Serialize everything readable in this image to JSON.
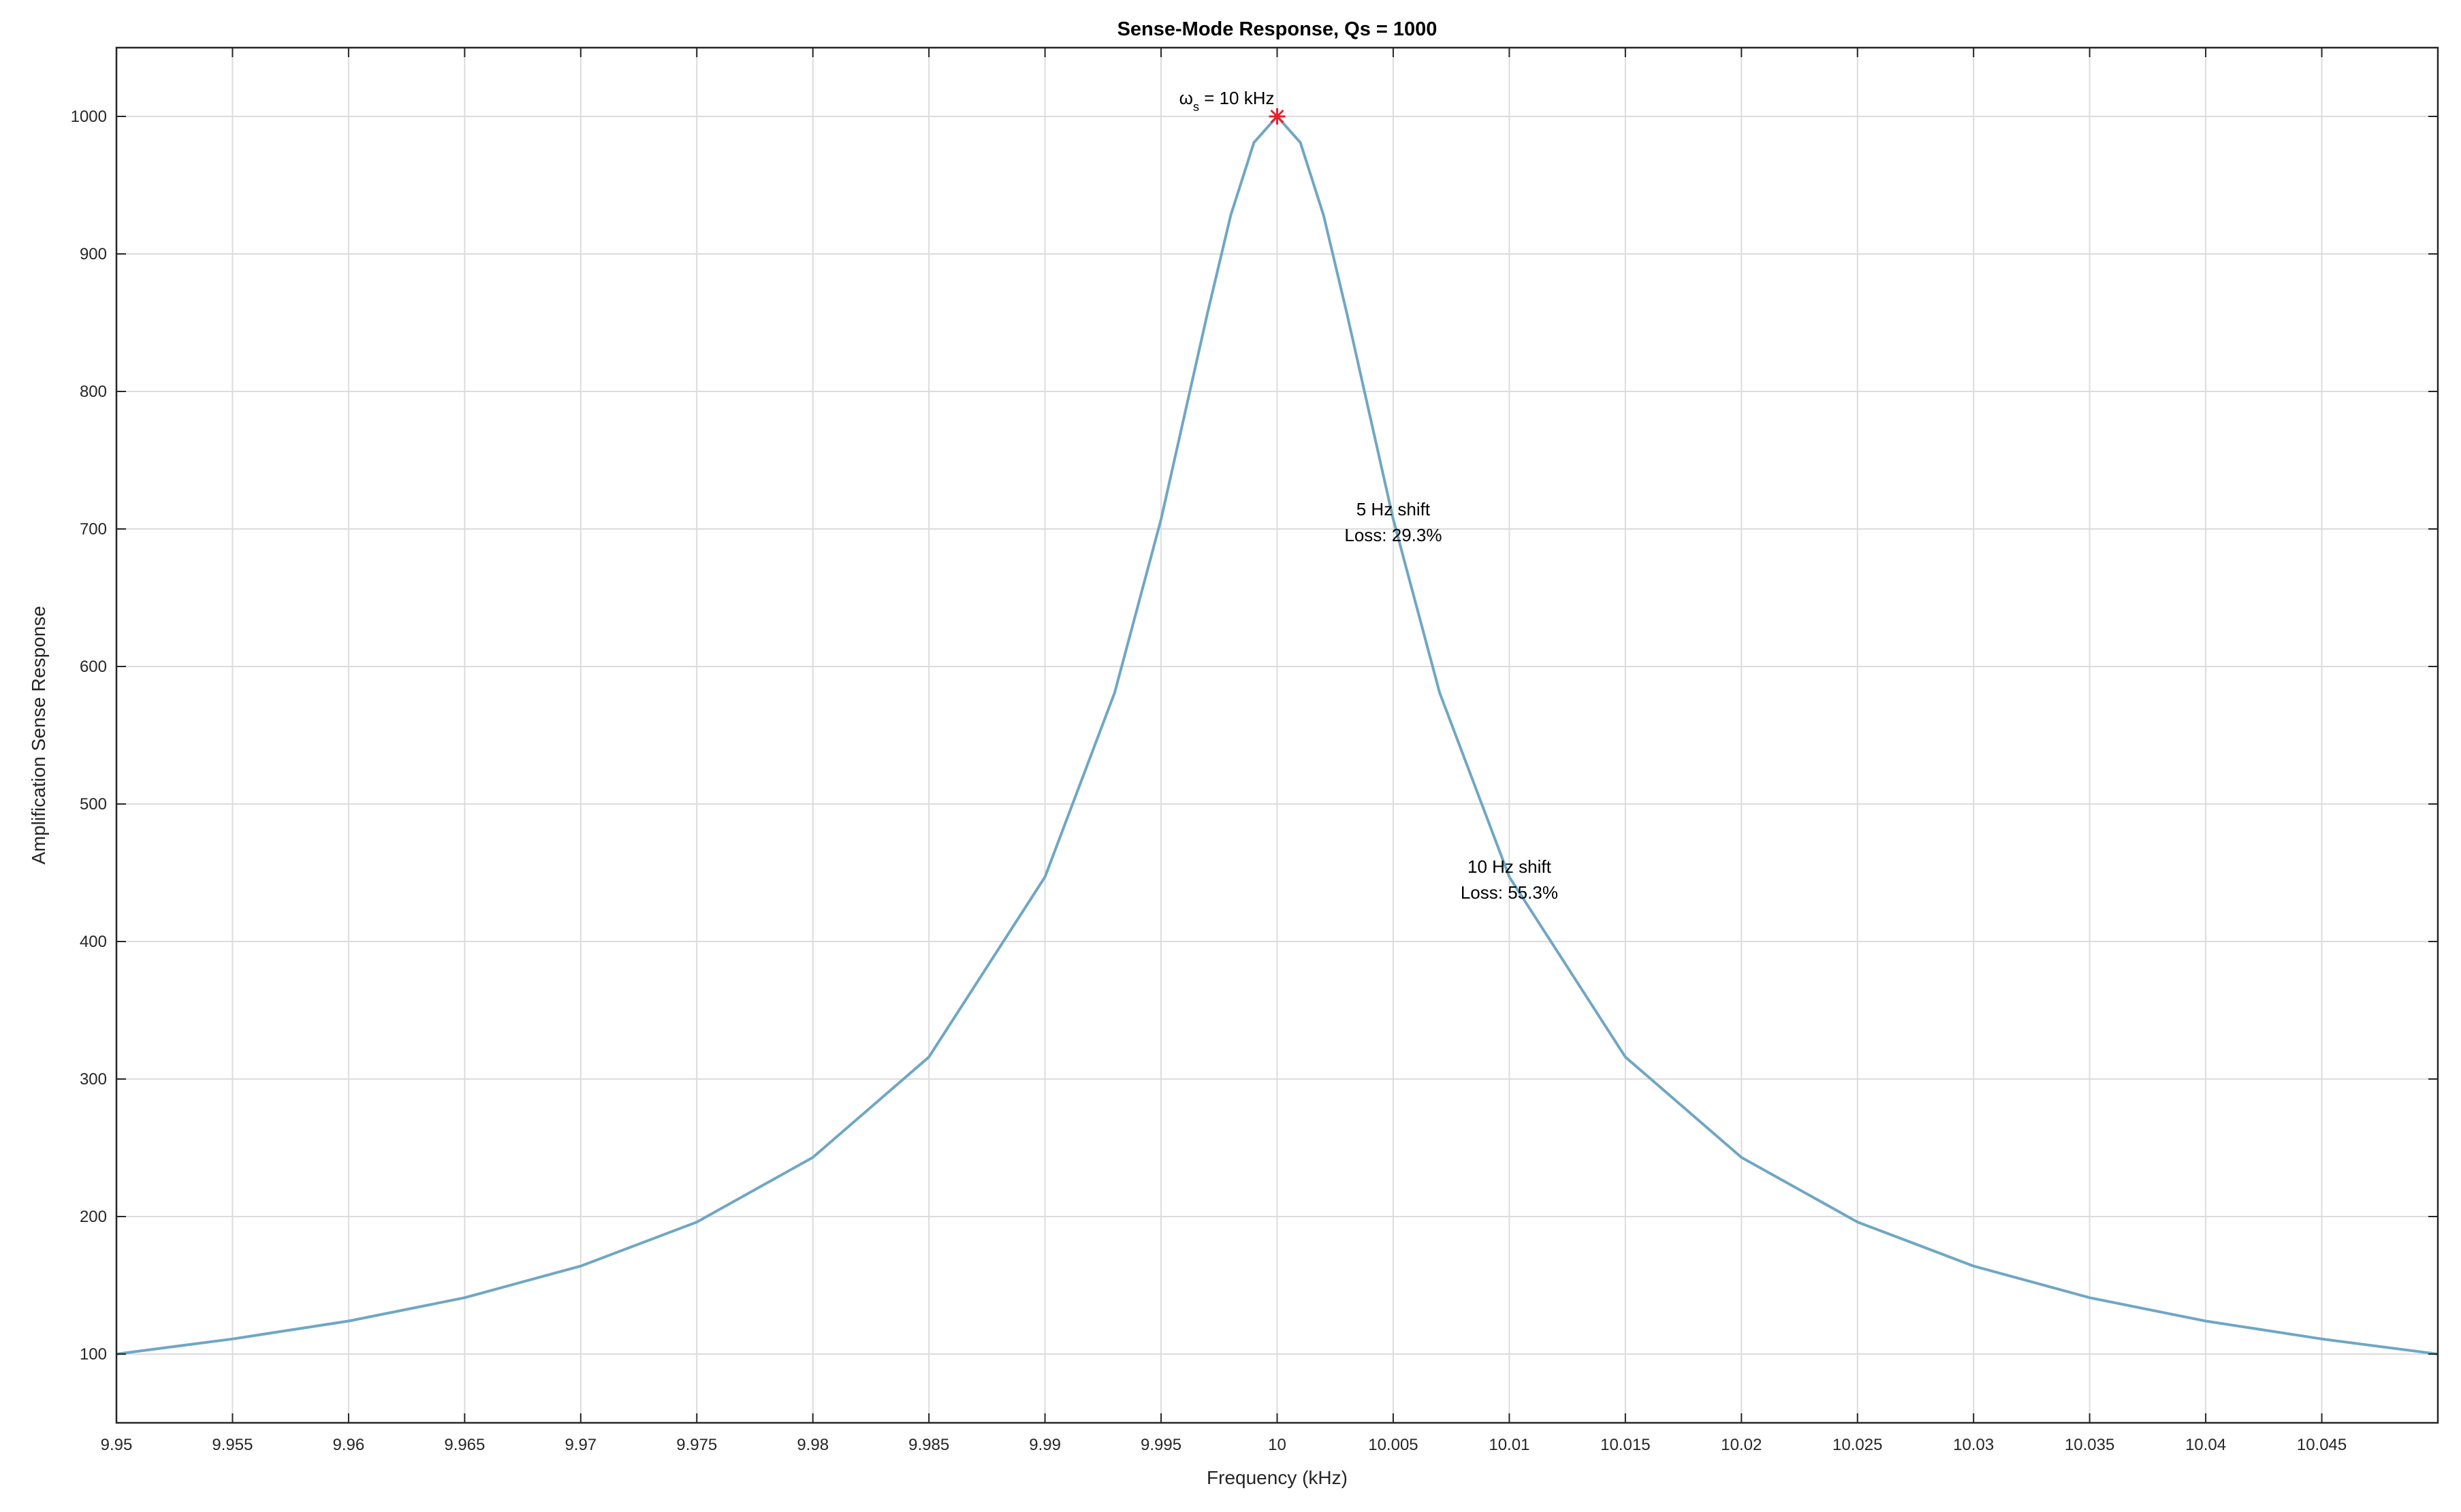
{
  "colors": {
    "curve": "#6fa7c4",
    "grid": "#dcdcdc",
    "axis": "#262626",
    "peak_marker": "#e8202a"
  },
  "chart_data": {
    "type": "line",
    "title": "Sense-Mode Response, Qs = 1000",
    "xlabel": "Frequency (kHz)",
    "ylabel": "Amplification Sense Response",
    "xlim": [
      9.95,
      10.05
    ],
    "ylim": [
      50,
      1050
    ],
    "xticks": [
      9.95,
      9.955,
      9.96,
      9.965,
      9.97,
      9.975,
      9.98,
      9.985,
      9.99,
      9.995,
      10,
      10.005,
      10.01,
      10.015,
      10.02,
      10.025,
      10.03,
      10.035,
      10.04,
      10.045
    ],
    "xtick_labels": [
      "9.95",
      "9.955",
      "9.96",
      "9.965",
      "9.97",
      "9.975",
      "9.98",
      "9.985",
      "9.99",
      "9.995",
      "10",
      "10.005",
      "10.01",
      "10.015",
      "10.02",
      "10.025",
      "10.03",
      "10.035",
      "10.04",
      "10.045"
    ],
    "yticks": [
      100,
      200,
      300,
      400,
      500,
      600,
      700,
      800,
      900,
      1000
    ],
    "ytick_labels": [
      "100",
      "200",
      "300",
      "400",
      "500",
      "600",
      "700",
      "800",
      "900",
      "1000"
    ],
    "grid": true,
    "series": [
      {
        "x": [
          9.95,
          9.955,
          9.96,
          9.965,
          9.97,
          9.975,
          9.98,
          9.985,
          9.99,
          9.993,
          9.995,
          9.997,
          9.998,
          9.999,
          10,
          10.001,
          10.002,
          10.003,
          10.005,
          10.007,
          10.01,
          10.015,
          10.02,
          10.025,
          10.03,
          10.035,
          10.04,
          10.045,
          10.05
        ],
        "y": [
          100,
          111,
          124,
          141,
          164,
          196,
          243,
          316,
          447,
          581,
          707,
          857,
          928,
          981,
          1000,
          981,
          928,
          857,
          707,
          581,
          447,
          316,
          243,
          196,
          164,
          141,
          124,
          111,
          100
        ]
      }
    ],
    "peak": {
      "x": 10,
      "y": 1000
    },
    "annotations": [
      {
        "text": "ω",
        "sub": "s",
        "rest": " = 10 kHz",
        "x": 10,
        "y": 1000
      },
      {
        "lines": [
          "5 Hz shift",
          "Loss: 29.3%"
        ],
        "x": 10.005,
        "y": 707
      },
      {
        "lines": [
          "10 Hz shift",
          "Loss: 55.3%"
        ],
        "x": 10.01,
        "y": 447
      }
    ]
  }
}
